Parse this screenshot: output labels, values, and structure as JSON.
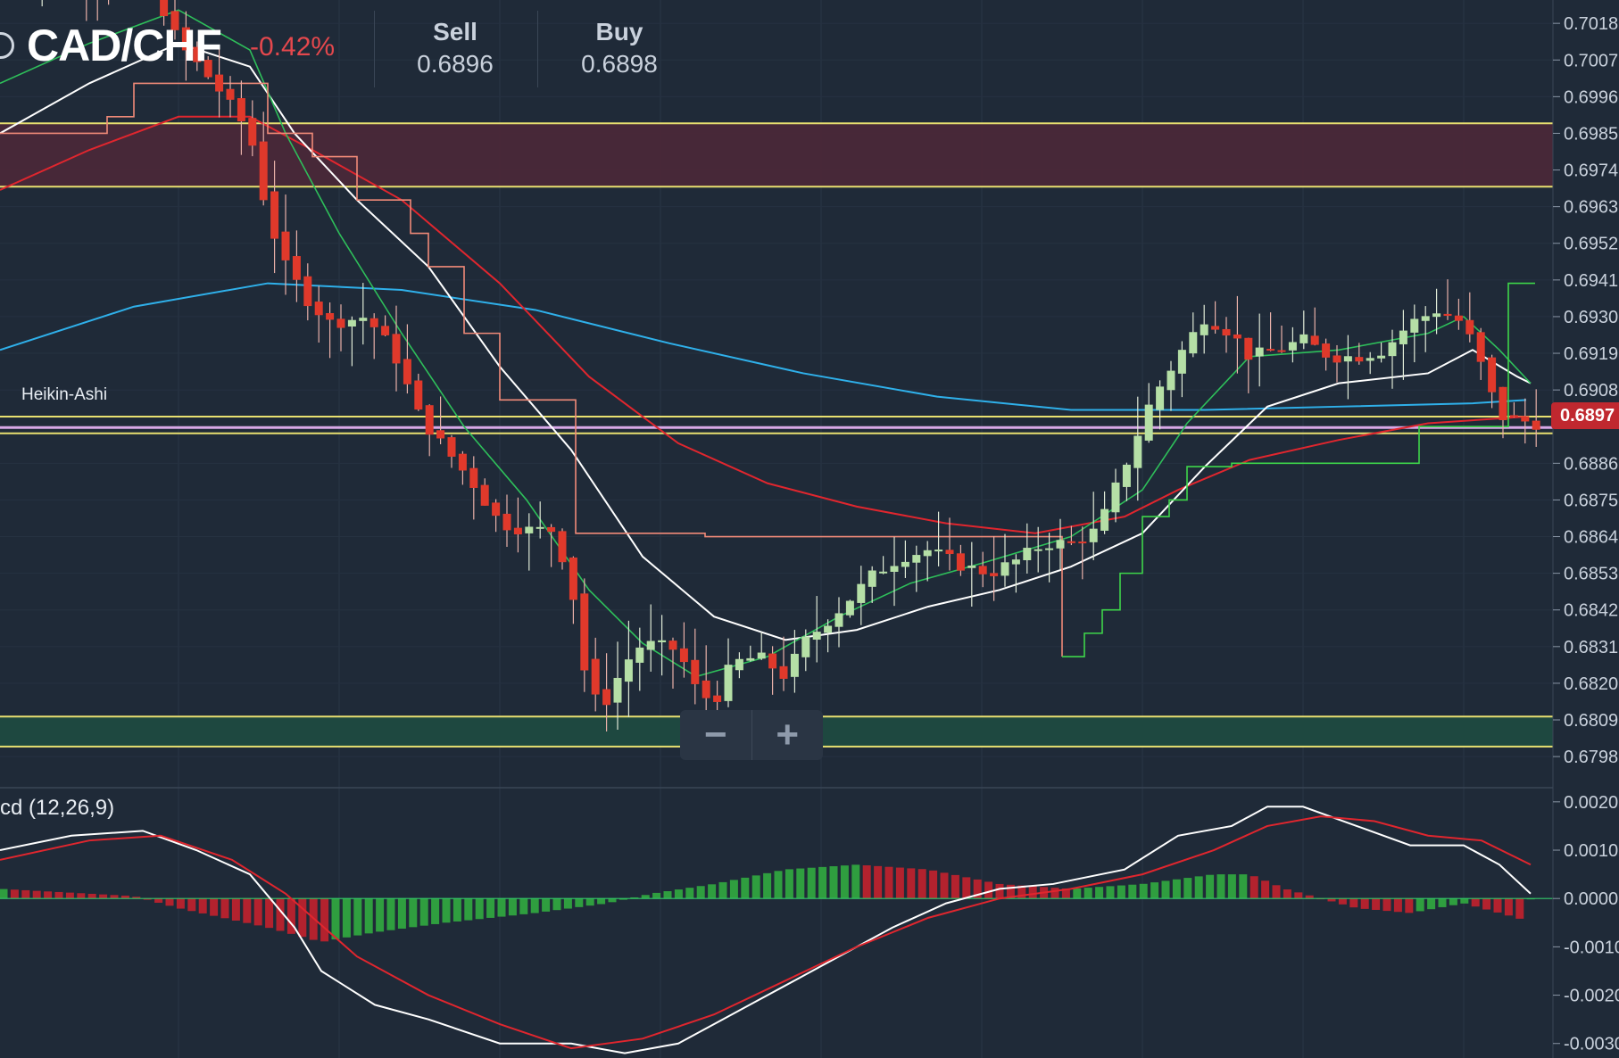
{
  "header": {
    "pair": "CAD/CHF",
    "change": "-0.42%",
    "sell_label": "Sell",
    "sell_value": "0.6896",
    "buy_label": "Buy",
    "buy_value": "0.6898"
  },
  "zoom": {
    "minus": "−",
    "plus": "+"
  },
  "labels": {
    "heikin_ashi": "Heikin-Ashi",
    "macd": "cd (12,26,9)",
    "last_price": "0.6897"
  },
  "colors": {
    "background": "#1f2a38",
    "up": "#b5dfa6",
    "down": "#e0392b",
    "level": "#e8e070",
    "resistance_zone": "#4a2838",
    "support_zone": "#1f4a40",
    "ma_blue": "#2fb0ea",
    "ma_red": "#e0262e",
    "ma_white": "#ffffff",
    "ma_green": "#2ebf5a",
    "macd_pos": "#2f9e3f",
    "macd_neg": "#b3222e"
  },
  "chart_data": [
    {
      "type": "heikin-ashi",
      "title": "CAD/CHF",
      "y_ticks": [
        "0.7018",
        "0.7007",
        "0.6996",
        "0.6985",
        "0.6974",
        "0.6963",
        "0.6952",
        "0.6941",
        "0.6930",
        "0.6919",
        "0.6908",
        "0.6897",
        "0.6886",
        "0.6875",
        "0.6864",
        "0.6853",
        "0.6842",
        "0.6831",
        "0.6820",
        "0.6809",
        "0.6798"
      ],
      "ylim": [
        0.679,
        0.7025
      ],
      "horizontal_levels": [
        0.6988,
        0.6969,
        0.69,
        0.6895,
        0.681,
        0.6801
      ],
      "zones": [
        {
          "type": "resistance",
          "from": 0.6969,
          "to": 0.6988
        },
        {
          "type": "support",
          "from": 0.6801,
          "to": 0.681
        }
      ],
      "last_price": 0.6897
    },
    {
      "type": "macd",
      "title": "cd (12,26,9)",
      "y_ticks": [
        "0.0020",
        "0.0010",
        "0.0000",
        "-0.0010",
        "-0.0020",
        "-0.0030"
      ],
      "ylim": [
        -0.0033,
        0.0022
      ]
    }
  ]
}
